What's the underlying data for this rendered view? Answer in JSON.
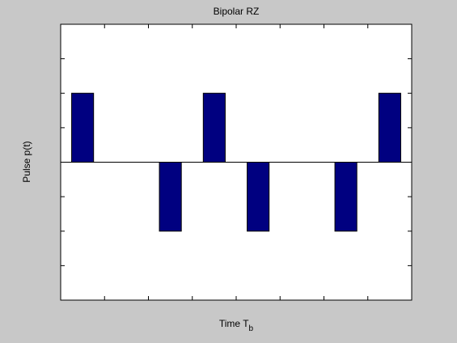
{
  "chart_data": {
    "type": "bar",
    "title": "Bipolar RZ",
    "x_label": "Time T",
    "x_label_subscript": "b",
    "y_label": "Pulse p(t)",
    "x": [
      0.5,
      1.5,
      2.5,
      3.5,
      4.5,
      5.5,
      6.5,
      7.5
    ],
    "values": [
      1,
      0,
      -1,
      1,
      -1,
      0,
      -1,
      1
    ],
    "color": "#000080",
    "xlim": [
      0,
      8
    ],
    "xticks": [
      1,
      2,
      3,
      4,
      5,
      6,
      7
    ],
    "ylim": [
      -2,
      2
    ],
    "yticks": [
      -1.5,
      -1,
      -0.5,
      0,
      0.5,
      1,
      1.5
    ],
    "grid": false
  }
}
